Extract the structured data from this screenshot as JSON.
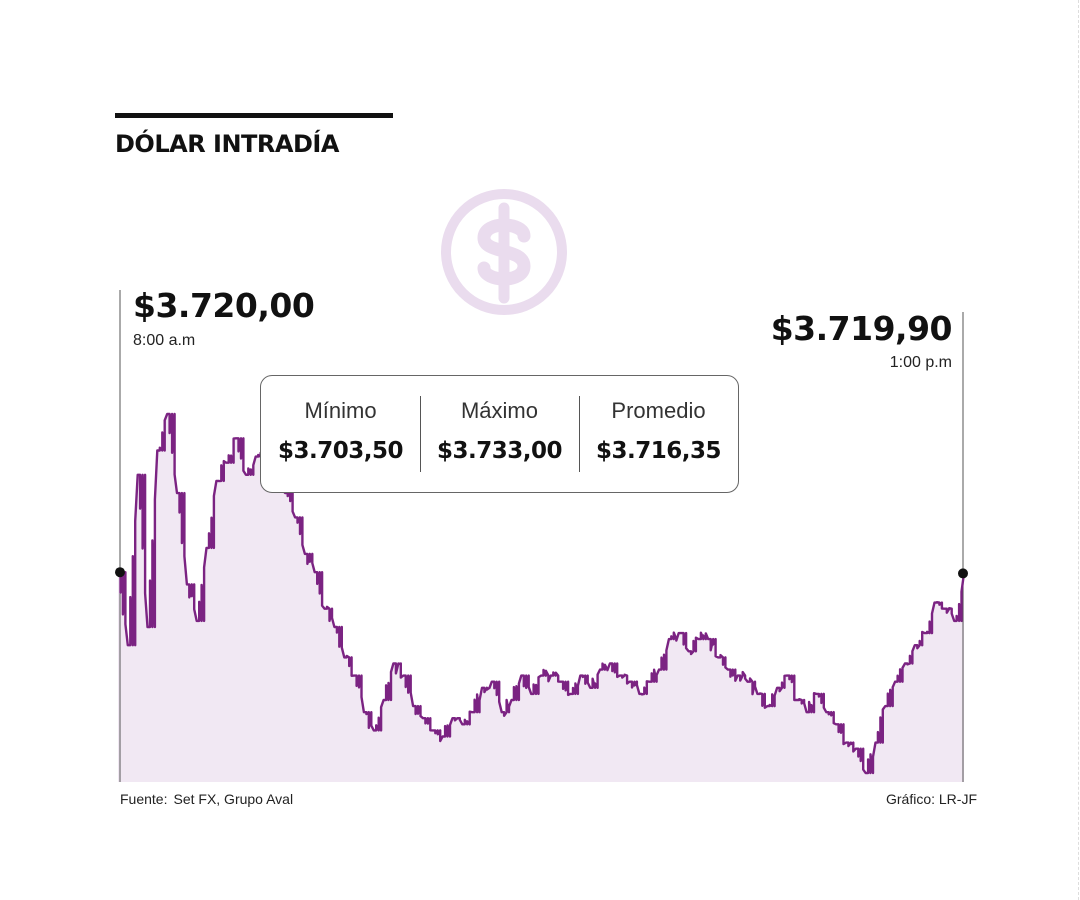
{
  "header": {
    "title": "DÓLAR INTRADÍA"
  },
  "opening": {
    "price": "$3.720,00",
    "time": "8:00 a.m"
  },
  "closing": {
    "price": "$3.719,90",
    "time": "1:00 p.m"
  },
  "stats": [
    {
      "label": "Mínimo",
      "value": "$3.703,50"
    },
    {
      "label": "Máximo",
      "value": "$3.733,00"
    },
    {
      "label": "Promedio",
      "value": "$3.716,35"
    }
  ],
  "footer": {
    "source_label": "Fuente:",
    "source": "Set FX, Grupo Aval",
    "credit": "Gráfico: LR-JF"
  },
  "colors": {
    "line": "#7b2382",
    "area": "#f1e8f3",
    "logo": "#eadcee",
    "markers": "#111111"
  },
  "icons": {
    "logo": "dollar-coin-icon"
  },
  "chart_data": {
    "type": "area",
    "x_start": "8:00 a.m",
    "x_end": "1:00 p.m",
    "y_min": 3703.5,
    "y_max": 3733.0,
    "grid": false,
    "values": [
      3720.0,
      3714.0,
      3728.0,
      3715.5,
      3730.0,
      3733.0,
      3726.5,
      3719.0,
      3716.0,
      3722.0,
      3727.5,
      3729.0,
      3731.0,
      3728.0,
      3729.5,
      3730.5,
      3728.5,
      3726.5,
      3724.5,
      3721.5,
      3720.0,
      3717.0,
      3715.5,
      3713.0,
      3711.5,
      3708.5,
      3707.0,
      3709.5,
      3712.5,
      3711.5,
      3709.0,
      3708.0,
      3707.0,
      3706.5,
      3708.0,
      3707.5,
      3708.5,
      3710.5,
      3711.0,
      3708.5,
      3709.5,
      3711.5,
      3710.0,
      3711.5,
      3711.5,
      3711.0,
      3710.0,
      3711.5,
      3710.5,
      3712.0,
      3712.5,
      3711.5,
      3711.0,
      3710.0,
      3711.0,
      3712.0,
      3714.5,
      3715.0,
      3713.5,
      3714.5,
      3714.5,
      3713.0,
      3712.0,
      3711.5,
      3711.0,
      3710.0,
      3709.0,
      3710.5,
      3711.5,
      3709.5,
      3708.5,
      3710.0,
      3708.5,
      3707.5,
      3706.0,
      3705.5,
      3703.5,
      3706.0,
      3709.0,
      3711.0,
      3712.5,
      3714.0,
      3715.0,
      3717.5,
      3717.0,
      3716.0,
      3719.9
    ]
  }
}
